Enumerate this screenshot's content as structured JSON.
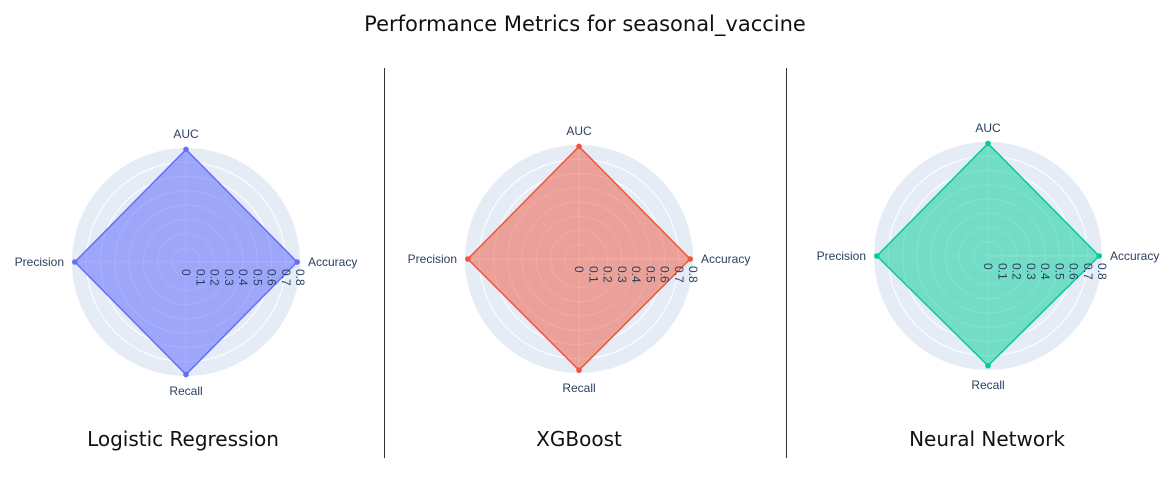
{
  "title": "Performance Metrics for seasonal_vaccine",
  "chart_data": {
    "type": "radar",
    "axes": [
      "Accuracy",
      "AUC",
      "Precision",
      "Recall"
    ],
    "radial_range": [
      0,
      0.8
    ],
    "radial_ticks": [
      "0",
      "0.1",
      "0.2",
      "0.3",
      "0.4",
      "0.5",
      "0.6",
      "0.7",
      "0.8"
    ],
    "angular_start_deg": 0,
    "direction": "counterclockwise",
    "grid": true,
    "panels": [
      {
        "name": "Logistic Regression",
        "color": "#636efa",
        "fill": "rgba(99,110,250,0.55)",
        "values": [
          0.78,
          0.79,
          0.78,
          0.79
        ]
      },
      {
        "name": "XGBoost",
        "color": "#ef553b",
        "fill": "rgba(239,85,59,0.50)",
        "values": [
          0.78,
          0.79,
          0.78,
          0.78
        ]
      },
      {
        "name": "Neural Network",
        "color": "#00cc96",
        "fill": "rgba(0,204,150,0.50)",
        "values": [
          0.78,
          0.79,
          0.78,
          0.77
        ]
      }
    ]
  }
}
